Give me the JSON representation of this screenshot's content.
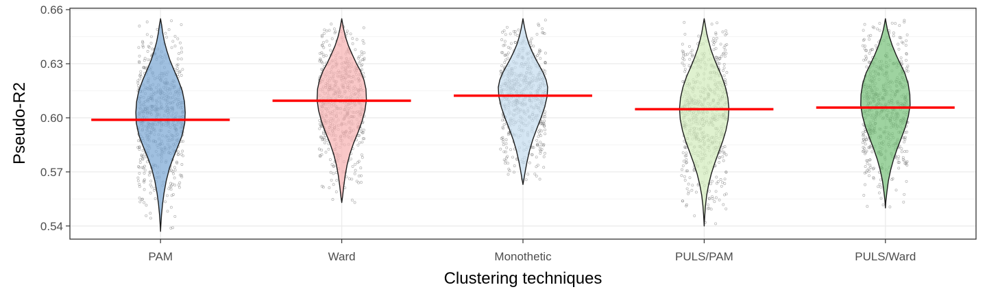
{
  "chart_data": {
    "type": "violin",
    "xlabel": "Clustering techniques",
    "ylabel": "Pseudo-R2",
    "ylim": [
      0.5327,
      0.6608
    ],
    "y_ticks": [
      0.54,
      0.57,
      0.6,
      0.63,
      0.66
    ],
    "y_tick_labels": [
      "0.54",
      "0.57",
      "0.60",
      "0.63",
      "0.66"
    ],
    "categories": [
      "PAM",
      "Ward",
      "Monothetic",
      "PULS/PAM",
      "PULS/Ward"
    ],
    "grid": true,
    "legend": "none",
    "series": [
      {
        "category": "PAM",
        "fill": "#7ba7d4",
        "mean": 0.5989,
        "min": 0.537,
        "max": 0.655,
        "center": 0.6,
        "profile": [
          [
            0.537,
            0
          ],
          [
            0.54,
            0.01
          ],
          [
            0.546,
            0.04
          ],
          [
            0.552,
            0.08
          ],
          [
            0.558,
            0.14
          ],
          [
            0.565,
            0.23
          ],
          [
            0.572,
            0.36
          ],
          [
            0.578,
            0.52
          ],
          [
            0.584,
            0.7
          ],
          [
            0.59,
            0.87
          ],
          [
            0.597,
            0.98
          ],
          [
            0.603,
            1.0
          ],
          [
            0.609,
            0.97
          ],
          [
            0.615,
            0.88
          ],
          [
            0.621,
            0.72
          ],
          [
            0.627,
            0.53
          ],
          [
            0.632,
            0.38
          ],
          [
            0.637,
            0.26
          ],
          [
            0.642,
            0.16
          ],
          [
            0.647,
            0.09
          ],
          [
            0.651,
            0.05
          ],
          [
            0.655,
            0
          ]
        ]
      },
      {
        "category": "Ward",
        "fill": "#f7b3b3",
        "mean": 0.6095,
        "min": 0.553,
        "max": 0.655,
        "center": 0.611,
        "profile": [
          [
            0.553,
            0
          ],
          [
            0.556,
            0.03
          ],
          [
            0.562,
            0.08
          ],
          [
            0.568,
            0.14
          ],
          [
            0.574,
            0.22
          ],
          [
            0.58,
            0.33
          ],
          [
            0.586,
            0.48
          ],
          [
            0.592,
            0.66
          ],
          [
            0.598,
            0.82
          ],
          [
            0.604,
            0.94
          ],
          [
            0.61,
            1.0
          ],
          [
            0.616,
            0.98
          ],
          [
            0.621,
            0.9
          ],
          [
            0.626,
            0.76
          ],
          [
            0.63,
            0.6
          ],
          [
            0.635,
            0.43
          ],
          [
            0.64,
            0.27
          ],
          [
            0.645,
            0.15
          ],
          [
            0.649,
            0.08
          ],
          [
            0.652,
            0.04
          ],
          [
            0.655,
            0
          ]
        ]
      },
      {
        "category": "Monothetic",
        "fill": "#c5dcef",
        "mean": 0.6123,
        "min": 0.563,
        "max": 0.655,
        "center": 0.614,
        "profile": [
          [
            0.563,
            0
          ],
          [
            0.566,
            0.04
          ],
          [
            0.571,
            0.1
          ],
          [
            0.576,
            0.17
          ],
          [
            0.582,
            0.27
          ],
          [
            0.588,
            0.4
          ],
          [
            0.594,
            0.56
          ],
          [
            0.6,
            0.73
          ],
          [
            0.606,
            0.88
          ],
          [
            0.612,
            0.98
          ],
          [
            0.617,
            1.0
          ],
          [
            0.621,
            0.94
          ],
          [
            0.625,
            0.82
          ],
          [
            0.629,
            0.66
          ],
          [
            0.633,
            0.5
          ],
          [
            0.637,
            0.36
          ],
          [
            0.641,
            0.24
          ],
          [
            0.645,
            0.15
          ],
          [
            0.649,
            0.08
          ],
          [
            0.652,
            0.04
          ],
          [
            0.655,
            0
          ]
        ]
      },
      {
        "category": "PULS/PAM",
        "fill": "#d2ecbc",
        "mean": 0.6048,
        "min": 0.54,
        "max": 0.655,
        "center": 0.606,
        "profile": [
          [
            0.54,
            0
          ],
          [
            0.545,
            0.02
          ],
          [
            0.551,
            0.05
          ],
          [
            0.557,
            0.1
          ],
          [
            0.563,
            0.18
          ],
          [
            0.569,
            0.29
          ],
          [
            0.575,
            0.43
          ],
          [
            0.581,
            0.59
          ],
          [
            0.587,
            0.75
          ],
          [
            0.593,
            0.88
          ],
          [
            0.599,
            0.97
          ],
          [
            0.605,
            1.0
          ],
          [
            0.611,
            0.96
          ],
          [
            0.617,
            0.86
          ],
          [
            0.623,
            0.71
          ],
          [
            0.628,
            0.55
          ],
          [
            0.633,
            0.4
          ],
          [
            0.638,
            0.27
          ],
          [
            0.643,
            0.17
          ],
          [
            0.647,
            0.1
          ],
          [
            0.651,
            0.05
          ],
          [
            0.655,
            0
          ]
        ]
      },
      {
        "category": "PULS/Ward",
        "fill": "#78c27c",
        "mean": 0.6057,
        "min": 0.55,
        "max": 0.655,
        "center": 0.607,
        "profile": [
          [
            0.55,
            0
          ],
          [
            0.554,
            0.02
          ],
          [
            0.559,
            0.06
          ],
          [
            0.565,
            0.12
          ],
          [
            0.571,
            0.21
          ],
          [
            0.577,
            0.33
          ],
          [
            0.583,
            0.48
          ],
          [
            0.589,
            0.65
          ],
          [
            0.595,
            0.81
          ],
          [
            0.601,
            0.93
          ],
          [
            0.607,
            1.0
          ],
          [
            0.613,
            0.99
          ],
          [
            0.619,
            0.92
          ],
          [
            0.625,
            0.78
          ],
          [
            0.63,
            0.6
          ],
          [
            0.635,
            0.43
          ],
          [
            0.64,
            0.28
          ],
          [
            0.645,
            0.16
          ],
          [
            0.649,
            0.08
          ],
          [
            0.652,
            0.04
          ],
          [
            0.655,
            0
          ]
        ]
      }
    ]
  }
}
